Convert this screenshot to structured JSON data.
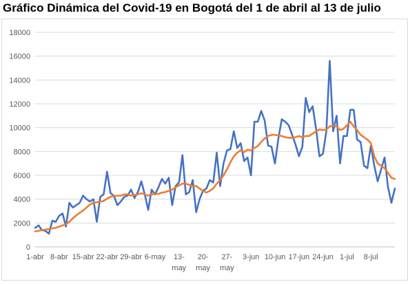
{
  "chart_data": {
    "type": "line",
    "title": "Gráfico Dinámica del Covid-19 en Bogotá del 1 de abril al 13 de julio",
    "xlabel": "",
    "ylabel": "",
    "ylim": [
      0,
      18000
    ],
    "yticks": [
      "0",
      "2000",
      "4000",
      "6000",
      "8000",
      "10000",
      "12000",
      "14000",
      "16000",
      "18000"
    ],
    "xticks": [
      {
        "day": 0,
        "lines": [
          "1-abr"
        ]
      },
      {
        "day": 7,
        "lines": [
          "8-abr"
        ]
      },
      {
        "day": 14,
        "lines": [
          "15-abr"
        ]
      },
      {
        "day": 21,
        "lines": [
          "22-abr"
        ]
      },
      {
        "day": 28,
        "lines": [
          "29-abr"
        ]
      },
      {
        "day": 35,
        "lines": [
          "6-may"
        ]
      },
      {
        "day": 42,
        "lines": [
          "13-",
          "may"
        ]
      },
      {
        "day": 49,
        "lines": [
          "20-",
          "may"
        ]
      },
      {
        "day": 56,
        "lines": [
          "27-",
          "may"
        ]
      },
      {
        "day": 63,
        "lines": [
          "3-jun"
        ]
      },
      {
        "day": 70,
        "lines": [
          "10-jun"
        ]
      },
      {
        "day": 77,
        "lines": [
          "17-jun"
        ]
      },
      {
        "day": 84,
        "lines": [
          "24-jun"
        ]
      },
      {
        "day": 91,
        "lines": [
          "1-jul"
        ]
      },
      {
        "day": 98,
        "lines": [
          "8-jul"
        ]
      }
    ],
    "grid": true,
    "legend": "none",
    "series": [
      {
        "color": "#4472c4",
        "values": [
          1600,
          1800,
          1400,
          1350,
          1100,
          2200,
          2100,
          2600,
          2800,
          1700,
          3700,
          3300,
          3500,
          3700,
          4300,
          4000,
          3800,
          4000,
          2100,
          4200,
          4400,
          6300,
          4500,
          4300,
          3500,
          3800,
          4200,
          4300,
          4800,
          4100,
          4600,
          5500,
          4400,
          3100,
          4800,
          4400,
          5000,
          5700,
          5300,
          5800,
          3500,
          5100,
          5400,
          7700,
          4400,
          4600,
          5600,
          2900,
          4000,
          4700,
          4900,
          5600,
          5400,
          7900,
          5100,
          7000,
          8100,
          8200,
          9700,
          8300,
          8700,
          7200,
          7500,
          6000,
          10500,
          10500,
          11400,
          10600,
          8500,
          8400,
          7000,
          9100,
          10700,
          10500,
          10200,
          9400,
          8600,
          7600,
          8400,
          12500,
          11300,
          11800,
          9900,
          7600,
          7800,
          9700,
          15600,
          9700,
          11000,
          7000,
          9300,
          9300,
          11500,
          11500,
          9000,
          8800,
          6800,
          6600,
          8500,
          6800,
          5500,
          6500,
          7500,
          5000,
          3700,
          4900
        ]
      },
      {
        "color": "#ed7d31",
        "values": [
          1300,
          1350,
          1400,
          1450,
          1500,
          1550,
          1600,
          1700,
          1800,
          1900,
          2100,
          2400,
          2650,
          2850,
          3050,
          3300,
          3550,
          3700,
          3750,
          3800,
          3850,
          4050,
          4200,
          4250,
          4300,
          4300,
          4400,
          4400,
          4300,
          4350,
          4400,
          4500,
          4400,
          4300,
          4400,
          4450,
          4450,
          4550,
          4600,
          4700,
          4800,
          5000,
          5150,
          5300,
          5300,
          5200,
          5100,
          5100,
          4900,
          4700,
          4550,
          4700,
          4900,
          5300,
          5600,
          6000,
          6500,
          7100,
          7600,
          7900,
          8100,
          7950,
          8150,
          8100,
          8300,
          8450,
          8800,
          9100,
          9300,
          9400,
          9400,
          9350,
          9300,
          9200,
          9150,
          9150,
          9200,
          9300,
          9200,
          9300,
          9300,
          9500,
          9700,
          9850,
          9800,
          9850,
          10100,
          10200,
          10100,
          9800,
          9900,
          10200,
          10500,
          10100,
          9800,
          9400,
          9200,
          9000,
          8700,
          7600,
          7000,
          6800,
          6600,
          6200,
          5800,
          5700
        ]
      }
    ]
  }
}
